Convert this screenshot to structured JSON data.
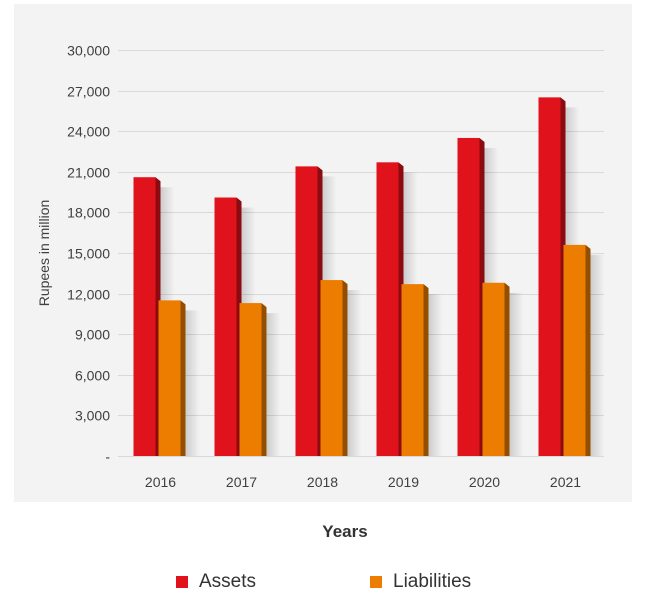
{
  "chart_data": {
    "type": "bar",
    "categories": [
      "2016",
      "2017",
      "2018",
      "2019",
      "2020",
      "2021"
    ],
    "series": [
      {
        "name": "Assets",
        "color": "#e0121c",
        "values": [
          20600,
          19100,
          21400,
          21700,
          23500,
          26500
        ]
      },
      {
        "name": "Liabilities",
        "color": "#ed7d00",
        "values": [
          11500,
          11300,
          13000,
          12700,
          12800,
          15600
        ]
      }
    ],
    "title": "",
    "xlabel": "Years",
    "ylabel": "Rupees in million",
    "ylim": [
      0,
      30000
    ],
    "yticks": [
      0,
      3000,
      6000,
      9000,
      12000,
      15000,
      18000,
      21000,
      24000,
      27000,
      30000
    ],
    "ytick_labels": [
      "-",
      "3,000",
      "6,000",
      "9,000",
      "12,000",
      "15,000",
      "18,000",
      "21,000",
      "24,000",
      "27,000",
      "30,000"
    ],
    "grid": true,
    "legend": "bottom"
  }
}
